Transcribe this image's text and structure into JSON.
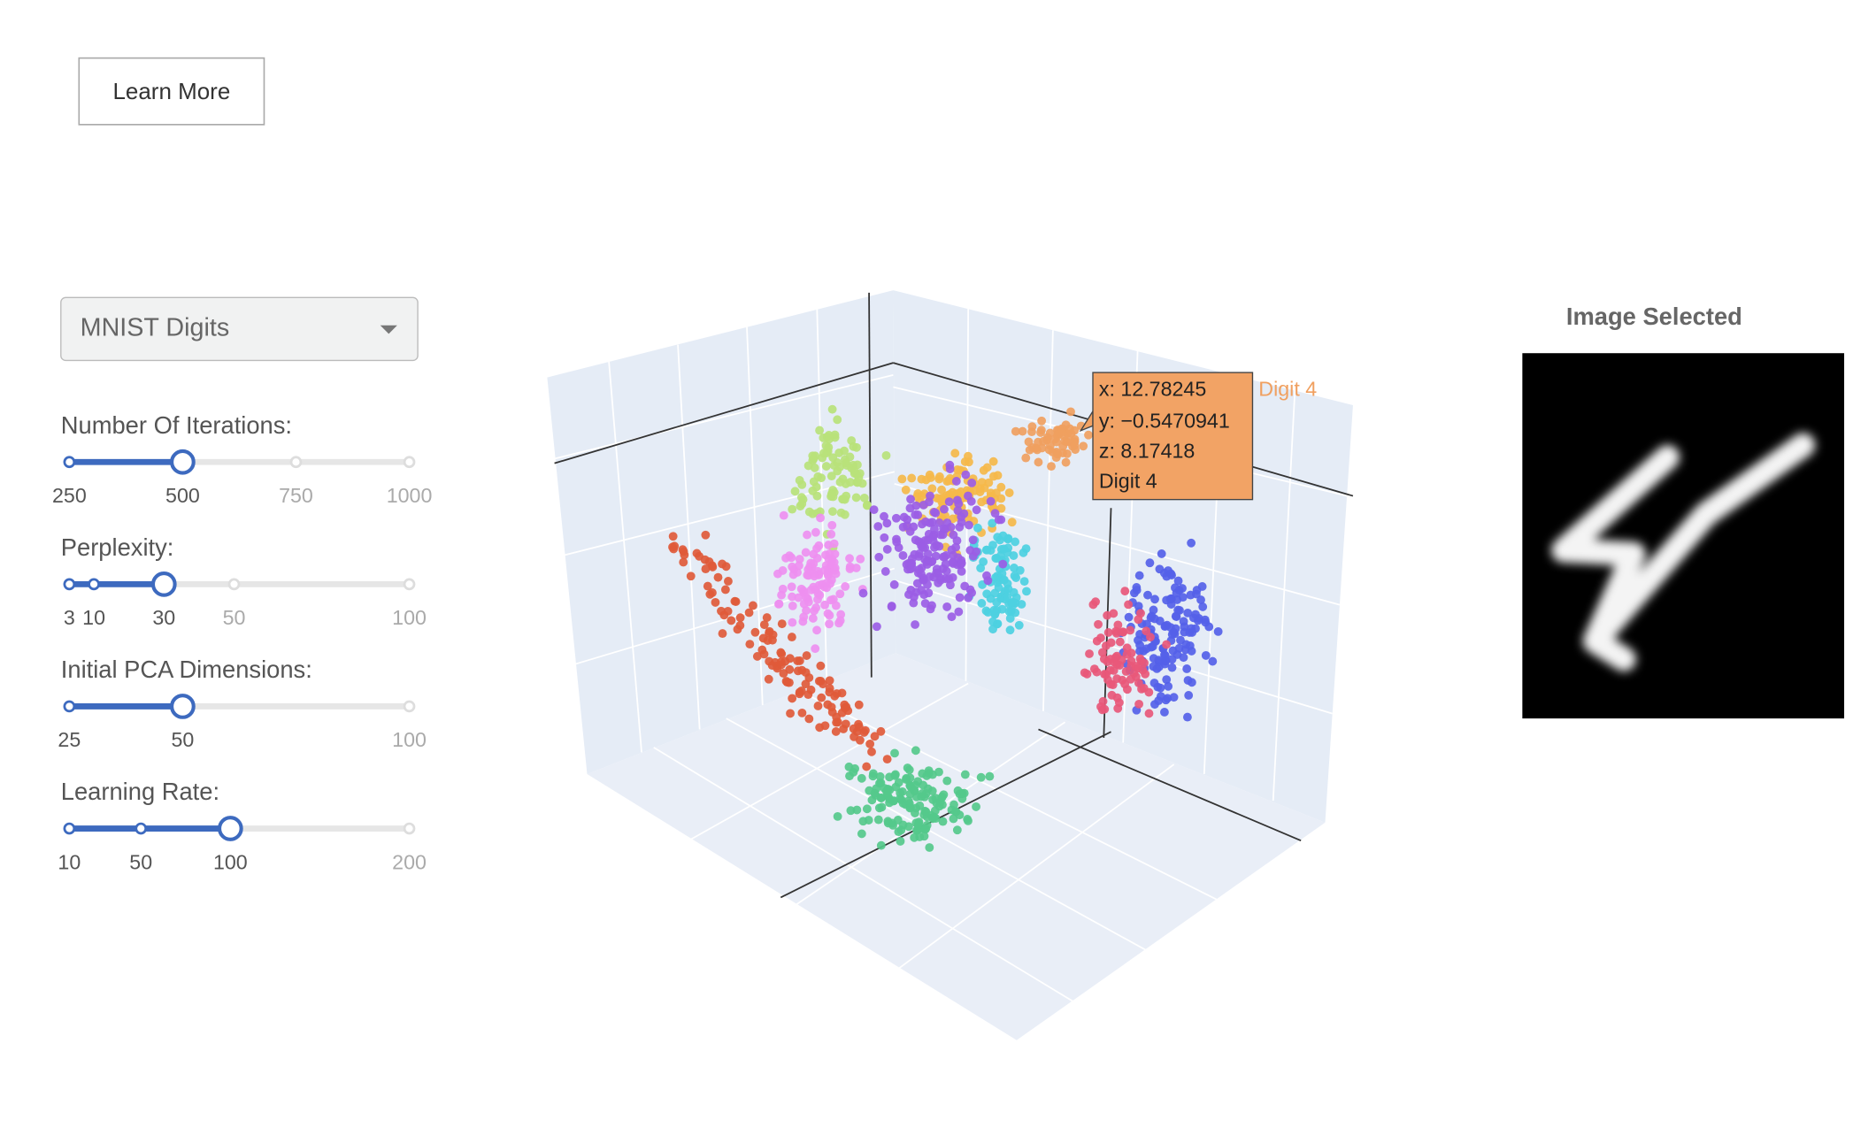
{
  "button": "Learn More",
  "dropdown": {
    "selected": "MNIST Digits"
  },
  "sliders": [
    {
      "label": "Number Of Iterations:",
      "marks": [
        250,
        500,
        750,
        1000
      ],
      "value": 500
    },
    {
      "label": "Perplexity:",
      "marks": [
        3,
        10,
        30,
        50,
        100
      ],
      "value": 30
    },
    {
      "label": "Initial PCA Dimensions:",
      "marks": [
        25,
        50,
        100
      ],
      "value": 50
    },
    {
      "label": "Learning Rate:",
      "marks": [
        10,
        50,
        100,
        200
      ],
      "value": 100
    }
  ],
  "tooltip": {
    "lines": [
      "x: 12.78245",
      "y: −0.5470941",
      "z: 8.17418",
      "Digit 4"
    ],
    "name": "Digit 4"
  },
  "image_panel": {
    "title": "Image Selected"
  }
}
